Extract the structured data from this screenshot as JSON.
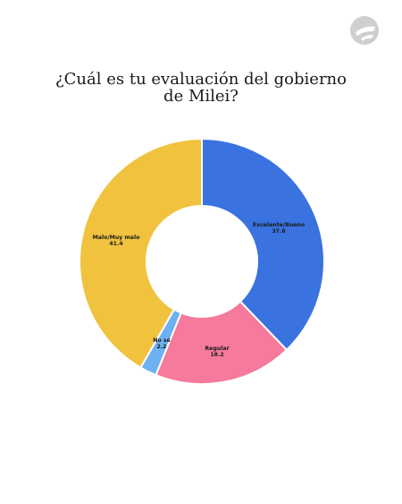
{
  "logo": {
    "icon": "brand-logo-icon",
    "color": "#cfcfcf"
  },
  "title": {
    "line1": "¿Cuál es tu evaluación del gobierno",
    "line2": "de Milei?"
  },
  "chart_data": {
    "type": "pie",
    "variant": "donut",
    "title": "¿Cuál es tu evaluación del gobierno de Milei?",
    "slices": [
      {
        "label": "Excelente/Bueno",
        "value": 37.6,
        "display": "37.6",
        "color": "#3a72e0"
      },
      {
        "label": "Regular",
        "value": 18.2,
        "display": "18.2",
        "color": "#f57a9b"
      },
      {
        "label": "No sé",
        "value": 2.2,
        "display": "2.2",
        "color": "#6cb2f2"
      },
      {
        "label": "Malo/Muy malo",
        "value": 41.4,
        "display": "41.4",
        "color": "#f0c23e"
      }
    ],
    "start": "12 o'clock",
    "direction": "clockwise",
    "legend": "none"
  }
}
